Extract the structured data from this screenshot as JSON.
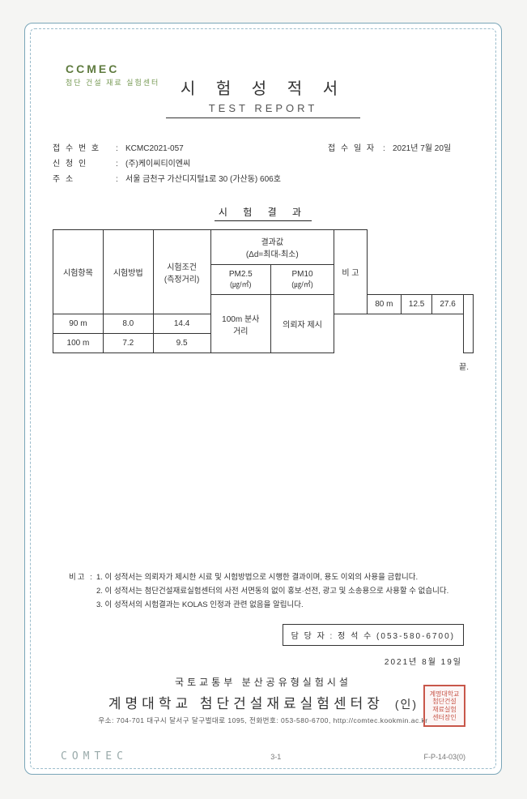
{
  "logo": {
    "top": "CCMEC",
    "sub": "첨단 건설 재료 실험센터"
  },
  "title": {
    "ko": "시 험 성 적 서",
    "en": "TEST REPORT"
  },
  "meta": {
    "receipt_no_label": "접 수 번 호",
    "receipt_no": "KCMC2021-057",
    "receipt_date_label": "접 수 일 자",
    "receipt_date": "2021년  7월  20일",
    "applicant_label": "신   청   인",
    "applicant": "(주)케이씨티이엔씨",
    "address_label": "주        소",
    "address": "서울 금천구 가산디지털1로 30 (가산동) 606호"
  },
  "section_title": "시  험  결  과",
  "table": {
    "headers": {
      "item": "시험항목",
      "method": "시험방법",
      "condition": "시험조건\n(측정거리)",
      "result_group": "결과값\n(Δd=최대-최소)",
      "pm25": "PM2.5",
      "pm25_unit": "(㎍/㎥)",
      "pm10": "PM10",
      "pm10_unit": "(㎍/㎥)",
      "remark": "비  고"
    },
    "item": "100m 분사\n거리",
    "method": "의뢰자 제시",
    "rows": [
      {
        "dist": "80 m",
        "pm25": "12.5",
        "pm10": "27.6"
      },
      {
        "dist": "90 m",
        "pm25": "8.0",
        "pm10": "14.4"
      },
      {
        "dist": "100 m",
        "pm25": "7.2",
        "pm10": "9.5"
      }
    ]
  },
  "end_mark": "끝.",
  "notes": {
    "label": "비고 :",
    "lines": [
      "1. 이 성적서는 의뢰자가 제시한 시료 및 시험방법으로 시행한 결과이며, 용도 이외의 사용을 금합니다.",
      "2. 이 성적서는 첨단건설재료실험센터의 사전 서면동의 없이 홍보·선전, 광고 및 소송용으로 사용할 수 없습니다.",
      "3. 이 성적서의 시험결과는 KOLAS 인정과 관련 없음을 알립니다."
    ]
  },
  "contact": {
    "label": "담 당 자 :",
    "value": "정 석 수 (053-580-6700)"
  },
  "issue_date": "2021년  8월  19일",
  "issuer": {
    "line1": "국토교통부  분산공유형실험시설",
    "line2": "계명대학교  첨단건설재료실험센터장",
    "seal_word": "(인)",
    "line3": "우소: 704-701 대구시 달서구 달구벌대로 1095,  전화번호: 053-580-6700,  http://comtec.kookmin.ac.kr"
  },
  "seal_text": "계명대학교\n첨단건설\n재료실험\n센터장인",
  "footer": {
    "logo": "COMTEC",
    "page": "3-1",
    "form": "F-P-14-03(0)"
  },
  "colors": {
    "border": "#7aa6b8",
    "seal": "#c8574a"
  }
}
